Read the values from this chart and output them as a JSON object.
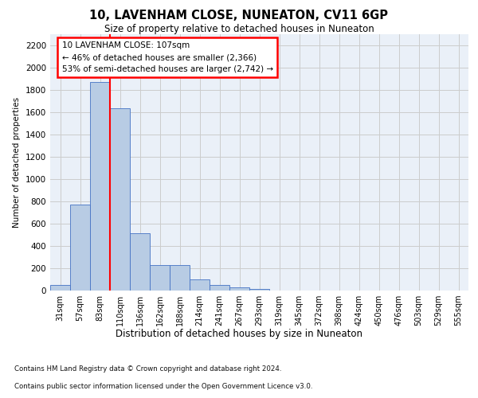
{
  "title": "10, LAVENHAM CLOSE, NUNEATON, CV11 6GP",
  "subtitle": "Size of property relative to detached houses in Nuneaton",
  "xlabel": "Distribution of detached houses by size in Nuneaton",
  "ylabel": "Number of detached properties",
  "categories": [
    "31sqm",
    "57sqm",
    "83sqm",
    "110sqm",
    "136sqm",
    "162sqm",
    "188sqm",
    "214sqm",
    "241sqm",
    "267sqm",
    "293sqm",
    "319sqm",
    "345sqm",
    "372sqm",
    "398sqm",
    "424sqm",
    "450sqm",
    "476sqm",
    "503sqm",
    "529sqm",
    "555sqm"
  ],
  "values": [
    50,
    770,
    1870,
    1630,
    510,
    230,
    230,
    100,
    50,
    30,
    15,
    0,
    0,
    0,
    0,
    0,
    0,
    0,
    0,
    0,
    0
  ],
  "bar_color": "#b8cce4",
  "bar_edge_color": "#4472c4",
  "red_line_x": 2.5,
  "annotation_text": "10 LAVENHAM CLOSE: 107sqm\n← 46% of detached houses are smaller (2,366)\n53% of semi-detached houses are larger (2,742) →",
  "annotation_box_color": "white",
  "annotation_box_edge_color": "red",
  "ylim": [
    0,
    2300
  ],
  "yticks": [
    0,
    200,
    400,
    600,
    800,
    1000,
    1200,
    1400,
    1600,
    1800,
    2000,
    2200
  ],
  "footer_line1": "Contains HM Land Registry data © Crown copyright and database right 2024.",
  "footer_line2": "Contains public sector information licensed under the Open Government Licence v3.0.",
  "grid_color": "#cccccc",
  "background_color": "#eaf0f8"
}
